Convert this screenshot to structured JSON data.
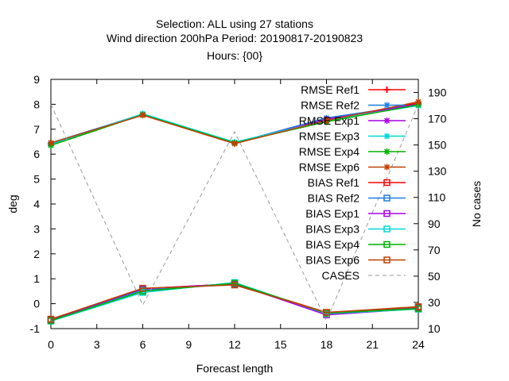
{
  "chart_data": {
    "type": "line",
    "title_lines": [
      "Selection: ALL using    27 stations",
      "Wind direction 200hPa   Period: 20190817-20190823",
      "Hours: {00}"
    ],
    "xlabel": "Forecast length",
    "ylabel": "deg",
    "y2label": "No cases",
    "xlim": [
      0,
      24
    ],
    "ylim": [
      -1,
      9
    ],
    "y2lim": [
      10,
      200
    ],
    "xticks": [
      0,
      3,
      6,
      9,
      12,
      15,
      18,
      21,
      24
    ],
    "yticks": [
      -1,
      0,
      1,
      2,
      3,
      4,
      5,
      6,
      7,
      8,
      9
    ],
    "y2ticks": [
      10,
      30,
      50,
      70,
      90,
      110,
      130,
      150,
      170,
      190
    ],
    "x": [
      0,
      6,
      12,
      18,
      24
    ],
    "legend_position": "top-right",
    "series": [
      {
        "name": "RMSE Ref1",
        "color": "#ff0000",
        "marker": "plus",
        "values": [
          6.45,
          7.6,
          6.45,
          7.4,
          8.05
        ]
      },
      {
        "name": "RMSE Ref2",
        "color": "#1c7fe0",
        "marker": "star",
        "values": [
          6.45,
          7.6,
          6.45,
          7.45,
          8.0
        ]
      },
      {
        "name": "RMSE Exp1",
        "color": "#aa00e6",
        "marker": "star",
        "values": [
          6.4,
          7.58,
          6.45,
          7.4,
          8.0
        ]
      },
      {
        "name": "RMSE Exp3",
        "color": "#00d8d8",
        "marker": "star",
        "values": [
          6.4,
          7.62,
          6.48,
          7.35,
          7.95
        ]
      },
      {
        "name": "RMSE Exp4",
        "color": "#00b000",
        "marker": "star",
        "values": [
          6.35,
          7.58,
          6.45,
          7.3,
          7.98
        ]
      },
      {
        "name": "RMSE Exp6",
        "color": "#c04000",
        "marker": "star",
        "values": [
          6.45,
          7.56,
          6.42,
          7.35,
          8.1
        ]
      },
      {
        "name": "BIAS Ref1",
        "color": "#ff0000",
        "marker": "square",
        "values": [
          -0.65,
          0.6,
          0.8,
          -0.35,
          -0.15
        ]
      },
      {
        "name": "BIAS Ref2",
        "color": "#1c7fe0",
        "marker": "square",
        "values": [
          -0.65,
          0.55,
          0.78,
          -0.4,
          -0.18
        ]
      },
      {
        "name": "BIAS Exp1",
        "color": "#aa00e6",
        "marker": "square",
        "values": [
          -0.65,
          0.6,
          0.8,
          -0.45,
          -0.2
        ]
      },
      {
        "name": "BIAS Exp3",
        "color": "#00d8d8",
        "marker": "square",
        "values": [
          -0.7,
          0.45,
          0.85,
          -0.4,
          -0.22
        ]
      },
      {
        "name": "BIAS Exp4",
        "color": "#00b000",
        "marker": "square",
        "values": [
          -0.68,
          0.5,
          0.82,
          -0.38,
          -0.2
        ]
      },
      {
        "name": "BIAS Exp6",
        "color": "#c04000",
        "marker": "square",
        "values": [
          -0.62,
          0.62,
          0.75,
          -0.35,
          -0.12
        ]
      },
      {
        "name": "CASES",
        "color": "#999999",
        "dashed": true,
        "axis": "y2",
        "marker": "none",
        "values": [
          181,
          28,
          160,
          16,
          181
        ]
      }
    ]
  }
}
